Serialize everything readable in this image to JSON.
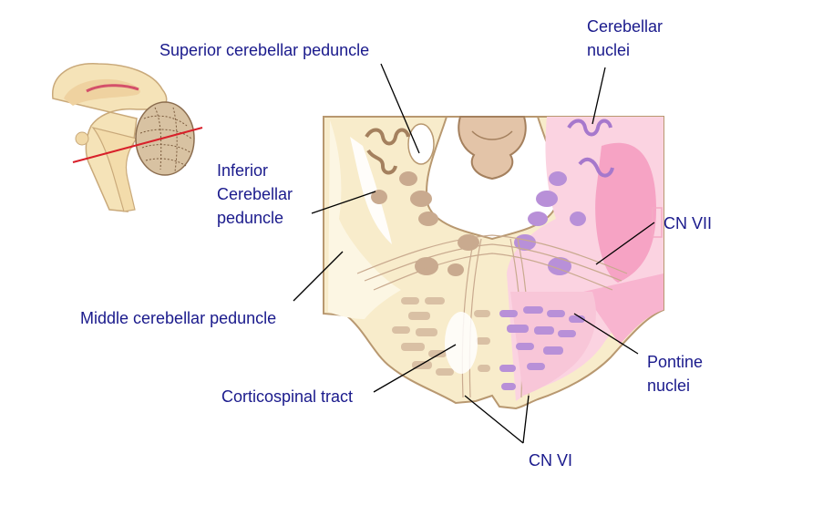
{
  "labels": {
    "superior": "Superior cerebellar peduncle",
    "cerebellar_nuclei_1": "Cerebellar",
    "cerebellar_nuclei_2": "nuclei",
    "inferior_1": "Inferior",
    "inferior_2": "Cerebellar",
    "inferior_3": "peduncle",
    "cn7": "CN VII",
    "middle": "Middle cerebellar peduncle",
    "pontine_1": "Pontine",
    "pontine_2": "nuclei",
    "corticospinal": "Corticospinal tract",
    "cn6": "CN VI"
  },
  "colors": {
    "label_text": "#1a1a8c",
    "pons_cream": "#f8eccb",
    "peduncle_pale": "#fcf6e3",
    "nuclei_tan": "#c9aa8f",
    "nuclei_purple": "#b890d8",
    "highlight_pink": "#f6a3c4",
    "section_line_red": "#d8202a"
  },
  "icons": {
    "brain_inset": "sagittal-brain-icon"
  }
}
